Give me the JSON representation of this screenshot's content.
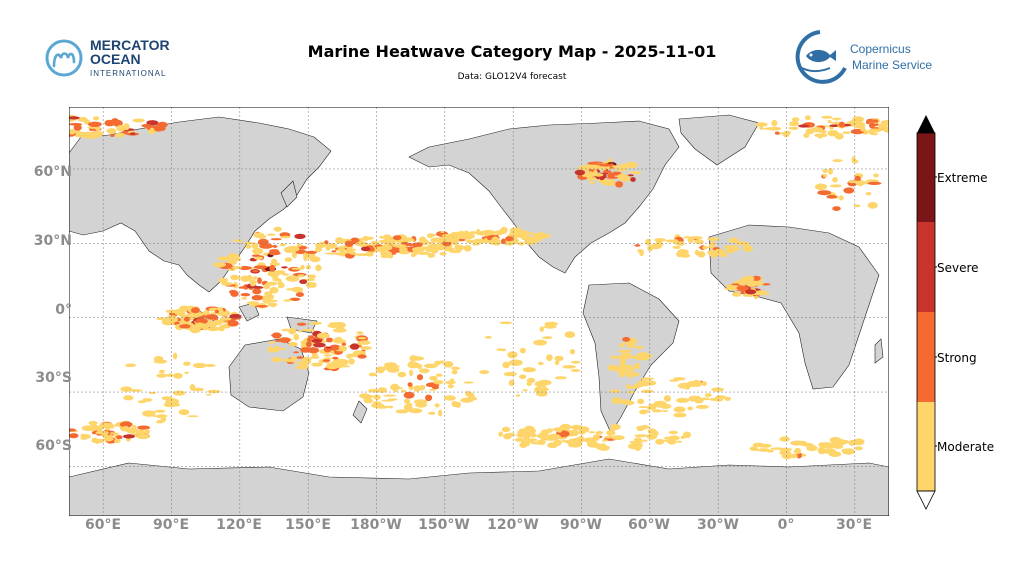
{
  "header": {
    "title": "Marine Heatwave Category Map - 2025-11-01",
    "subtitle": "Data: GLO12V4 forecast"
  },
  "logos": {
    "left": {
      "line1": "MERCATOR",
      "line2": "OCEAN",
      "line3": "INTERNATIONAL",
      "icon": "mercator-m-icon"
    },
    "right": {
      "line1": "Copernicus",
      "line2": "Marine Service",
      "icon": "copernicus-fish-icon"
    }
  },
  "map": {
    "projection": "plate-carree",
    "central_longitude": -180,
    "lon_range": [
      45,
      405
    ],
    "lat_range": [
      -80,
      85
    ],
    "gridlines": true,
    "lat_labels": [
      "60°N",
      "30°N",
      "0°",
      "30°S",
      "60°S"
    ],
    "lon_labels": [
      "60°E",
      "90°E",
      "120°E",
      "150°E",
      "180°W",
      "150°W",
      "120°W",
      "90°W",
      "60°W",
      "30°W",
      "0°",
      "30°E"
    ],
    "land_color": "#d3d3d3",
    "ocean_color": "#ffffff"
  },
  "colorbar": {
    "categories": [
      {
        "label": "Moderate",
        "color": "#fdd56a"
      },
      {
        "label": "Strong",
        "color": "#f46a30"
      },
      {
        "label": "Severe",
        "color": "#c8332b"
      },
      {
        "label": "Extreme",
        "color": "#7a1518"
      }
    ],
    "extend_top_color": "#000000",
    "extend_bottom_color": "#ffffff"
  }
}
